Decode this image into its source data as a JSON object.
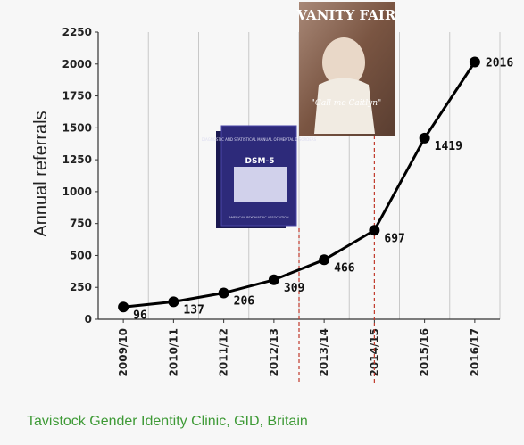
{
  "chart_data": {
    "type": "line",
    "title": "",
    "xlabel": "",
    "ylabel": "Annual referrals",
    "ylim": [
      0,
      2250
    ],
    "yticks": [
      0,
      250,
      500,
      750,
      1000,
      1250,
      1500,
      1750,
      2000,
      2250
    ],
    "categories": [
      "2009/10",
      "2010/11",
      "2011/12",
      "2012/13",
      "2013/14",
      "2014/15",
      "2015/16",
      "2016/17"
    ],
    "values": [
      96,
      137,
      206,
      309,
      466,
      697,
      1419,
      2016
    ],
    "grid": "vertical",
    "line_color": "#000000",
    "marker_color": "#000000",
    "reference_lines": [
      {
        "between": [
          "2012/13",
          "2013/14"
        ],
        "color": "#c0392b",
        "style": "dashed"
      },
      {
        "at": "2014/15",
        "color": "#c0392b",
        "style": "dashed"
      }
    ],
    "images": {
      "book": {
        "name": "book-cover-image",
        "texts": [
          "DIAGNOSTIC AND STATISTICAL MANUAL OF MENTAL DISORDERS",
          "DSM-5",
          "AMERICAN PSYCHIATRIC ASSOCIATION"
        ],
        "color": "#2d2a7a"
      },
      "magazine": {
        "name": "magazine-cover-image",
        "texts": [
          "VANITY FAIR",
          "\"Call me Caitlyn\""
        ],
        "color": "#8a5a45"
      }
    }
  },
  "source": "Tavistock Gender Identity Clinic, GID, Britain"
}
